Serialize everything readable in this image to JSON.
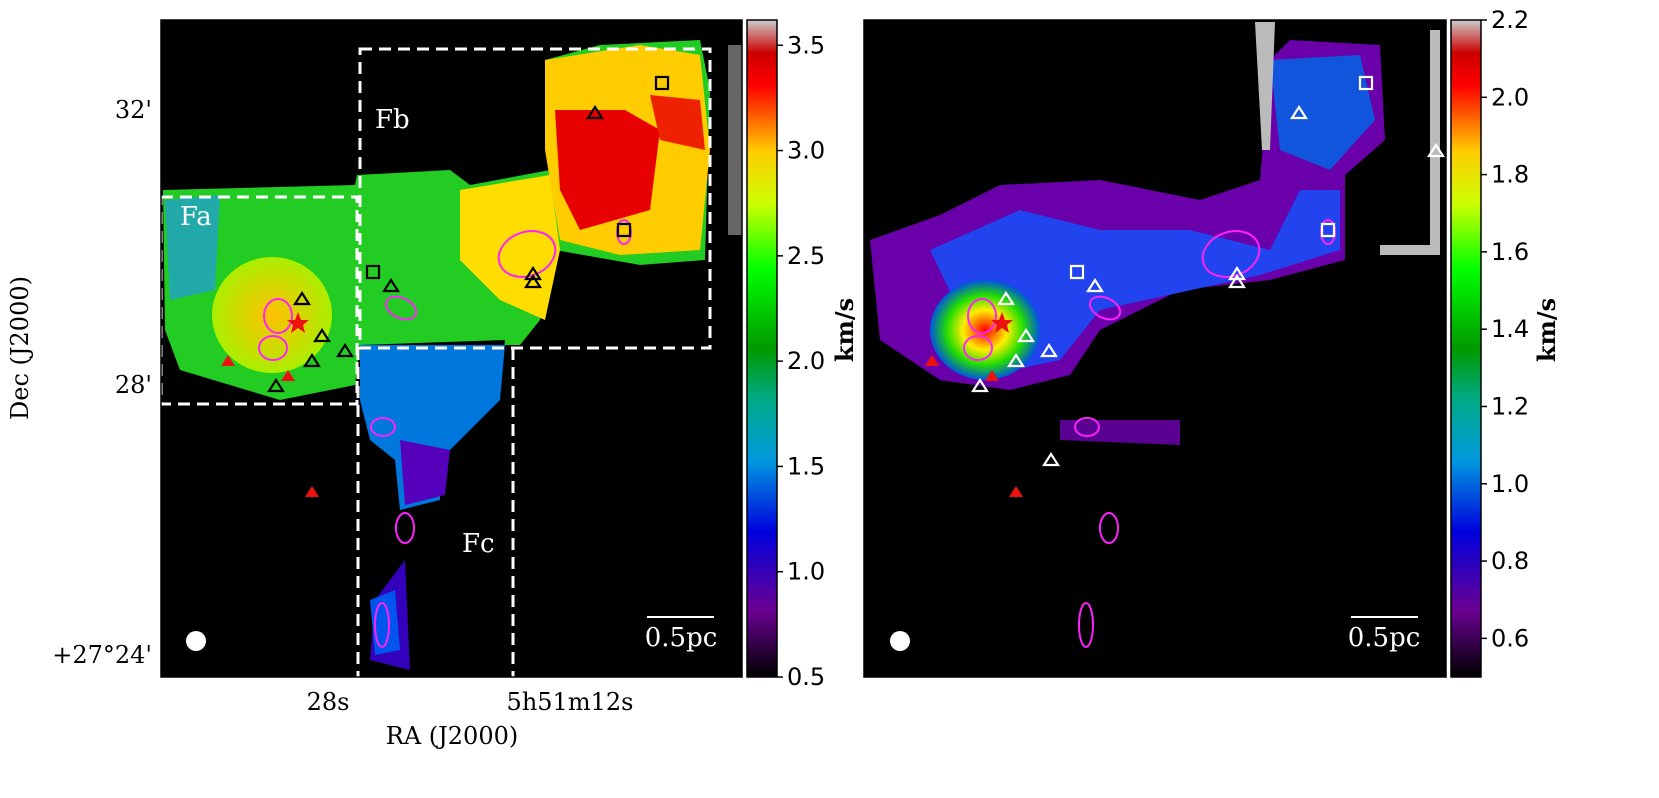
{
  "chart_data": [
    {
      "type": "map",
      "xlabel": "RA (J2000)",
      "ylabel": "Dec (J2000)",
      "xtick_labels": [
        "28s",
        "5h51m12s"
      ],
      "ytick_labels": [
        "32'",
        "28'",
        "+27°24'"
      ],
      "regions": [
        "Fa",
        "Fb",
        "Fc"
      ],
      "scalebar": "0.5pc",
      "colorbar_label": "km/s",
      "clim": [
        0.5,
        3.62
      ],
      "cticks": [
        0.5,
        {
          "value": 1,
          "label": "1.0"
        },
        1.5,
        {
          "value": 2,
          "label": "2.0"
        },
        2.5,
        {
          "value": 3,
          "label": "3.0"
        },
        3.5
      ]
    },
    {
      "type": "map",
      "scalebar": "0.5pc",
      "colorbar_label": "km/s",
      "clim": [
        0.5,
        2.2
      ],
      "cticks": [
        0.6,
        0.8,
        {
          "value": 1,
          "label": "1.0"
        },
        1.2,
        1.4,
        1.6,
        1.8,
        {
          "value": 2,
          "label": "2.0"
        },
        2.2
      ]
    }
  ]
}
